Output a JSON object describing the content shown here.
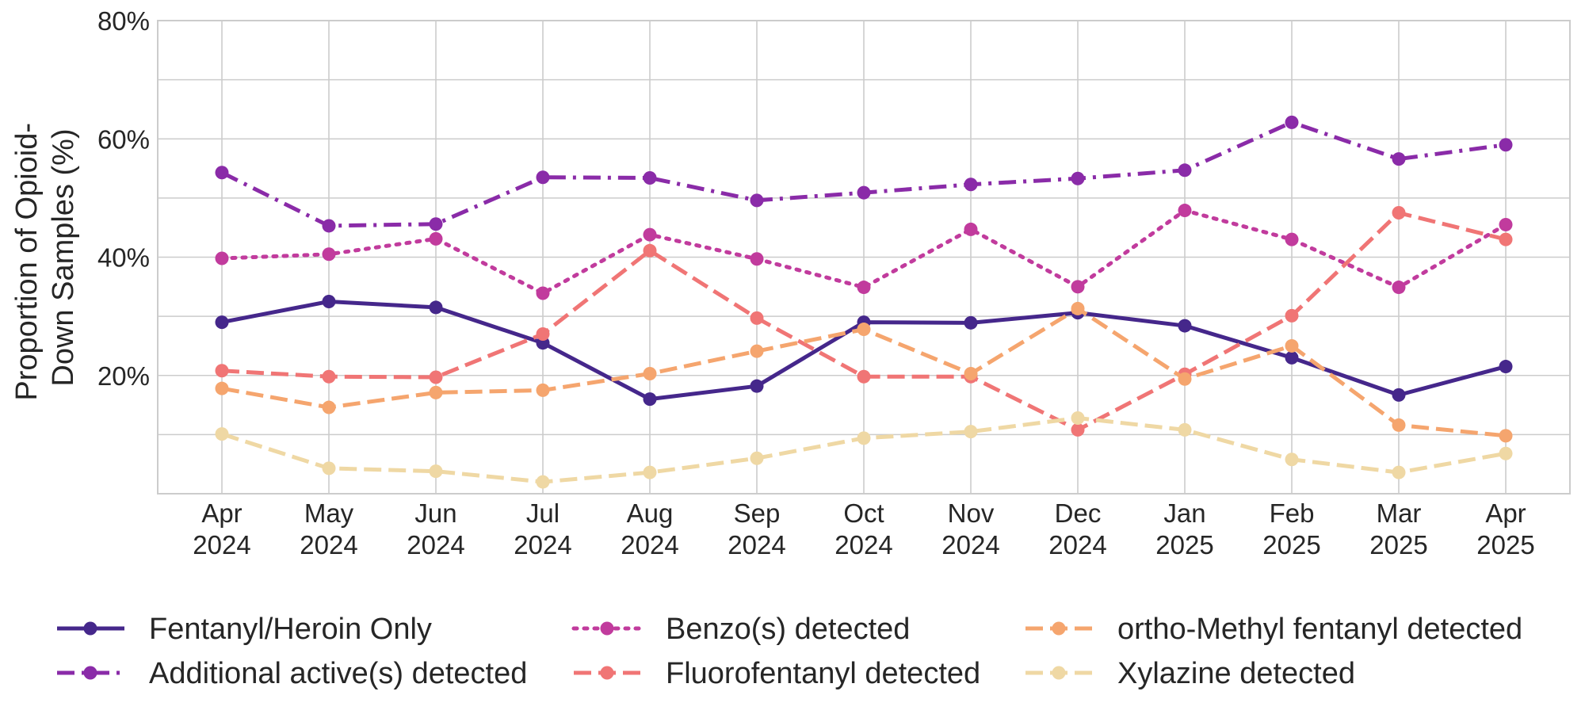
{
  "chart_data": {
    "type": "line",
    "categories": [
      [
        "Apr",
        "2024"
      ],
      [
        "May",
        "2024"
      ],
      [
        "Jun",
        "2024"
      ],
      [
        "Jul",
        "2024"
      ],
      [
        "Aug",
        "2024"
      ],
      [
        "Sep",
        "2024"
      ],
      [
        "Oct",
        "2024"
      ],
      [
        "Nov",
        "2024"
      ],
      [
        "Dec",
        "2024"
      ],
      [
        "Jan",
        "2025"
      ],
      [
        "Feb",
        "2025"
      ],
      [
        "Mar",
        "2025"
      ],
      [
        "Apr",
        "2025"
      ]
    ],
    "ylabel": [
      "Proportion of Opioid-",
      "Down Samples (%)"
    ],
    "ylim": [
      0,
      80
    ],
    "yticks": [
      0,
      10,
      20,
      30,
      40,
      50,
      60,
      70,
      80
    ],
    "ytick_labels": [
      "",
      "",
      "20%",
      "",
      "40%",
      "",
      "60%",
      "",
      "80%"
    ],
    "grid": true,
    "legend_position": "bottom",
    "series": [
      {
        "name": "Fentanyl/Heroin Only",
        "color": "#45278b",
        "dash": "solid",
        "values": [
          29.0,
          32.5,
          31.5,
          25.5,
          16.0,
          18.2,
          29.0,
          28.9,
          30.6,
          28.4,
          23.0,
          16.7,
          21.5
        ]
      },
      {
        "name": "Additional active(s) detected",
        "color": "#8a2ba8",
        "dash": "dashdot",
        "values": [
          54.3,
          45.3,
          45.6,
          53.5,
          53.4,
          49.6,
          50.9,
          52.3,
          53.3,
          54.7,
          62.8,
          56.6,
          59.0
        ]
      },
      {
        "name": "Benzo(s) detected",
        "color": "#c13b9d",
        "dash": "dotted",
        "values": [
          39.8,
          40.5,
          43.1,
          33.9,
          43.8,
          39.7,
          34.9,
          44.7,
          35.0,
          47.9,
          43.0,
          34.9,
          45.5
        ]
      },
      {
        "name": "Fluorofentanyl detected",
        "color": "#f07575",
        "dash": "dashed",
        "values": [
          20.8,
          19.8,
          19.7,
          27.0,
          41.1,
          29.7,
          19.8,
          19.8,
          10.8,
          20.2,
          30.1,
          47.5,
          43.0
        ]
      },
      {
        "name": "ortho-Methyl fentanyl detected",
        "color": "#f5a56e",
        "dash": "dashed",
        "values": [
          17.8,
          14.6,
          17.1,
          17.5,
          20.3,
          24.1,
          27.8,
          20.3,
          31.3,
          19.4,
          25.0,
          11.6,
          9.8
        ]
      },
      {
        "name": "Xylazine detected",
        "color": "#efd8a4",
        "dash": "dashed",
        "values": [
          10.1,
          4.3,
          3.8,
          2.0,
          3.6,
          6.0,
          9.4,
          10.5,
          12.8,
          10.8,
          5.8,
          3.6,
          6.8
        ]
      }
    ]
  }
}
